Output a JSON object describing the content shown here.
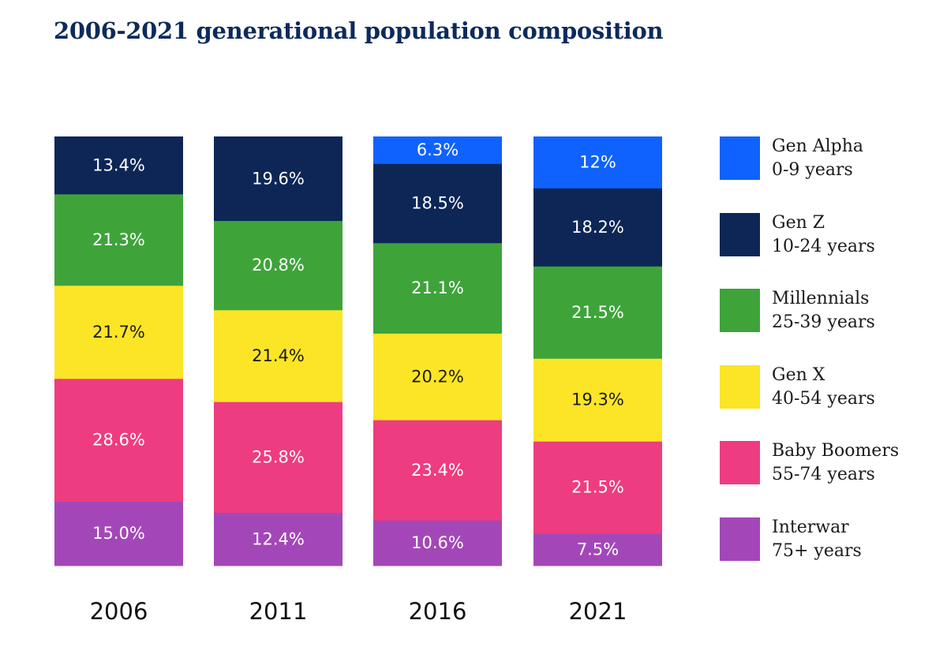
{
  "chart_data": {
    "type": "bar",
    "stacked": true,
    "normalized": true,
    "title": "2006-2021 generational population composition",
    "categories": [
      "2006",
      "2011",
      "2016",
      "2021"
    ],
    "series": [
      {
        "name": "Interwar",
        "sublabel": "75+ years",
        "color": "#a347b8",
        "text_color": "#ffffff",
        "values": [
          15.0,
          12.4,
          10.6,
          7.5
        ],
        "labels": [
          "15.0%",
          "12.4%",
          "10.6%",
          "7.5%"
        ]
      },
      {
        "name": "Baby Boomers",
        "sublabel": "55-74 years",
        "color": "#ee3c80",
        "text_color": "#ffffff",
        "values": [
          28.6,
          25.8,
          23.4,
          21.5
        ],
        "labels": [
          "28.6%",
          "25.8%",
          "23.4%",
          "21.5%"
        ]
      },
      {
        "name": "Gen X",
        "sublabel": "40-54 years",
        "color": "#fbe526",
        "text_color": "#1a1a1a",
        "values": [
          21.7,
          21.4,
          20.2,
          19.3
        ],
        "labels": [
          "21.7%",
          "21.4%",
          "20.2%",
          "19.3%"
        ]
      },
      {
        "name": "Millennials",
        "sublabel": "25-39 years",
        "color": "#3ea43a",
        "text_color": "#ffffff",
        "values": [
          21.3,
          20.8,
          21.1,
          21.5
        ],
        "labels": [
          "21.3%",
          "20.8%",
          "21.1%",
          "21.5%"
        ]
      },
      {
        "name": "Gen Z",
        "sublabel": "10-24 years",
        "color": "#0d2656",
        "text_color": "#ffffff",
        "values": [
          13.4,
          19.6,
          18.5,
          18.2
        ],
        "labels": [
          "13.4%",
          "19.6%",
          "18.5%",
          "18.2%"
        ]
      },
      {
        "name": "Gen Alpha",
        "sublabel": "0-9 years",
        "color": "#0f62fe",
        "text_color": "#ffffff",
        "values": [
          0,
          0,
          6.3,
          12
        ],
        "labels": [
          "",
          "",
          "6.3%",
          "12%"
        ]
      }
    ],
    "legend_order": [
      "Gen Alpha",
      "Gen Z",
      "Millennials",
      "Gen X",
      "Baby Boomers",
      "Interwar"
    ],
    "legend_position": "right",
    "ylim": [
      0,
      100
    ],
    "grid": false
  }
}
